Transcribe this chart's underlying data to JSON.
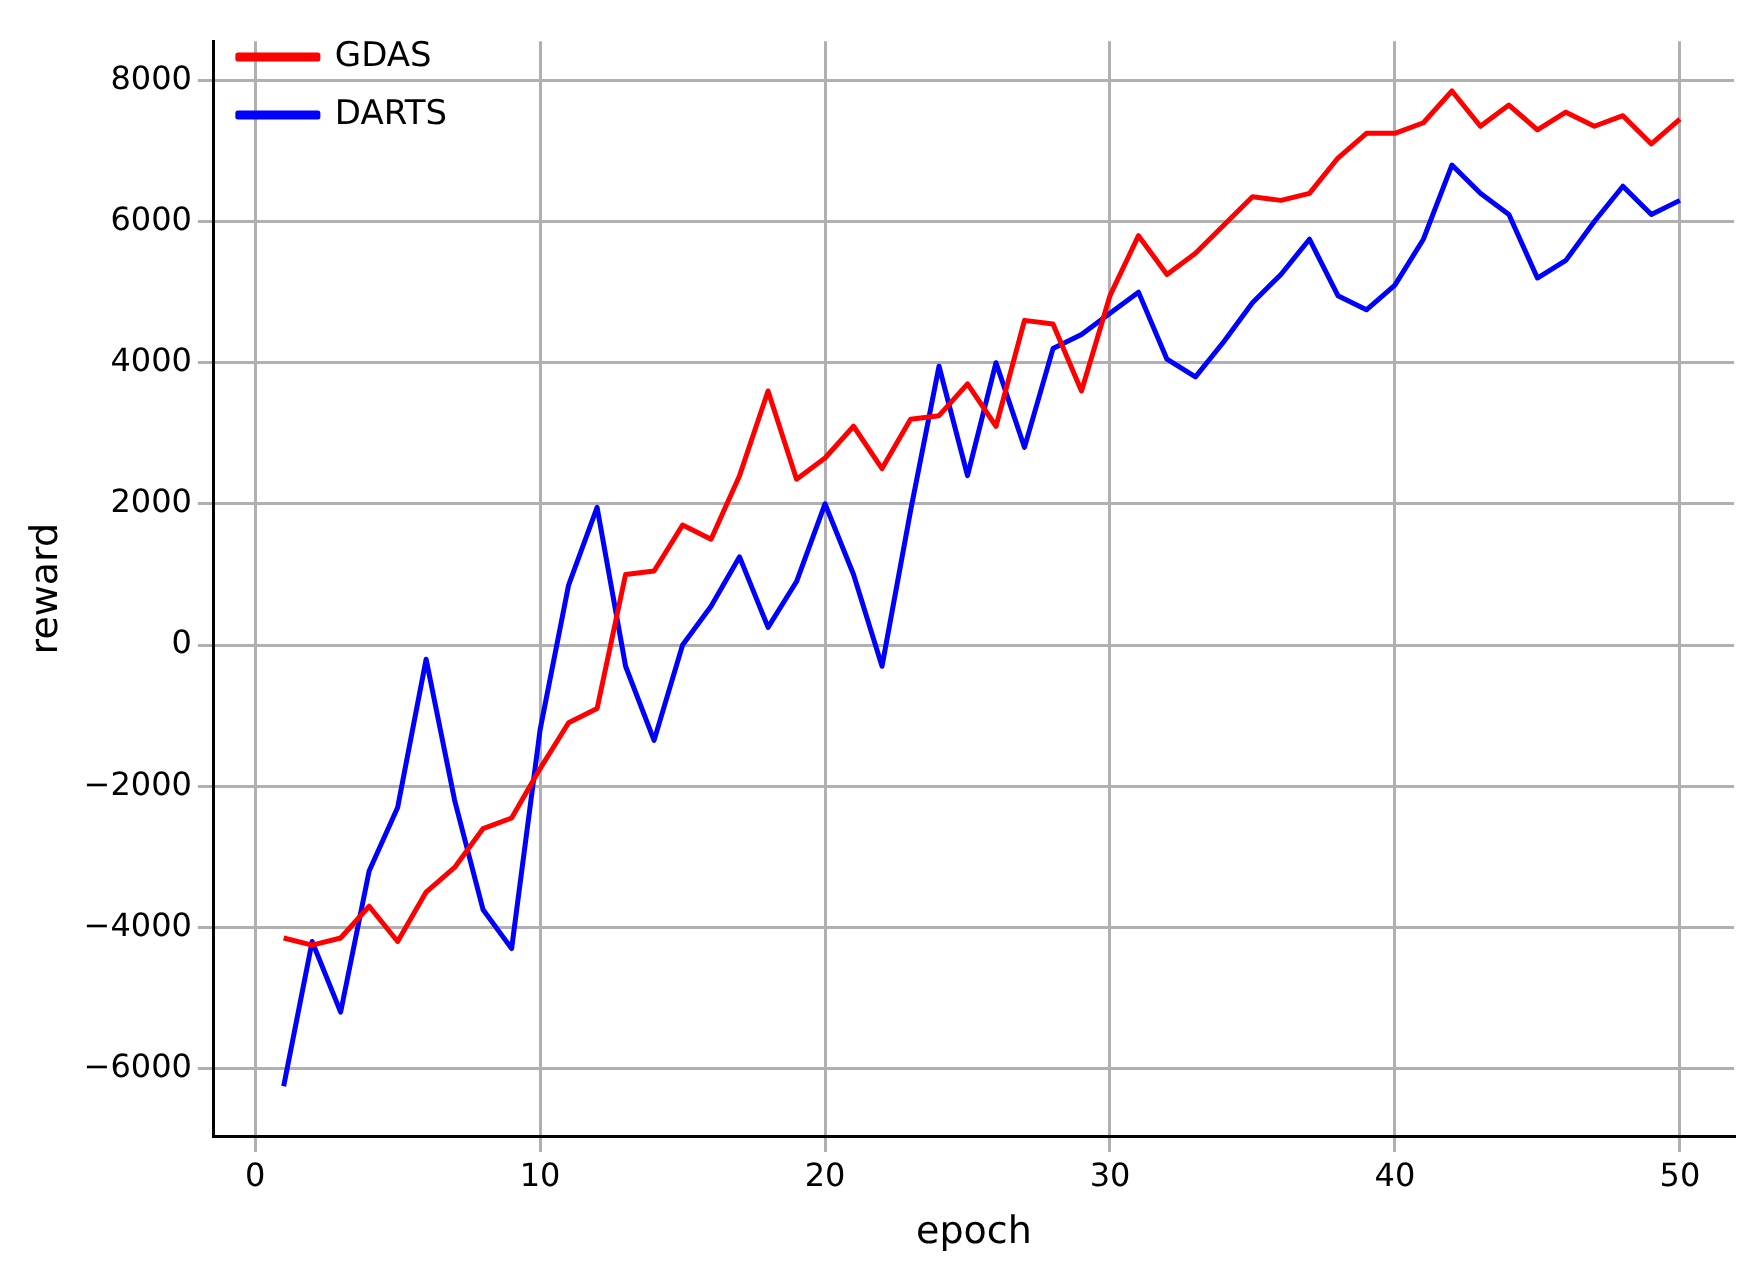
{
  "chart_data": {
    "type": "line",
    "xlabel": "epoch",
    "ylabel": "reward",
    "x": [
      1,
      2,
      3,
      4,
      5,
      6,
      7,
      8,
      9,
      10,
      11,
      12,
      13,
      14,
      15,
      16,
      17,
      18,
      19,
      20,
      21,
      22,
      23,
      24,
      25,
      26,
      27,
      28,
      29,
      30,
      31,
      32,
      33,
      34,
      35,
      36,
      37,
      38,
      39,
      40,
      41,
      42,
      43,
      44,
      45,
      46,
      47,
      48,
      49,
      50
    ],
    "series": [
      {
        "name": "GDAS",
        "color": "#ff0000",
        "values": [
          -4150,
          -4250,
          -4150,
          -3700,
          -4200,
          -3500,
          -3150,
          -2600,
          -2450,
          -1750,
          -1100,
          -900,
          1000,
          1050,
          1700,
          1500,
          2400,
          3600,
          2350,
          2650,
          3100,
          2500,
          3200,
          3250,
          3700,
          3100,
          4600,
          4550,
          3600,
          4950,
          5800,
          5250,
          5550,
          5950,
          6350,
          6300,
          6400,
          6900,
          7250,
          7250,
          7400,
          7850,
          7350,
          7650,
          7300,
          7550,
          7350,
          7500,
          7100,
          7450
        ]
      },
      {
        "name": "DARTS",
        "color": "#0000ff",
        "values": [
          -6250,
          -4200,
          -5200,
          -3200,
          -2300,
          -200,
          -2200,
          -3750,
          -4300,
          -1200,
          850,
          1950,
          -300,
          -1350,
          0,
          550,
          1250,
          250,
          900,
          2000,
          1000,
          -300,
          1900,
          3950,
          2400,
          4000,
          2800,
          4200,
          4400,
          4700,
          5000,
          4050,
          3800,
          4300,
          4850,
          5250,
          5750,
          4950,
          4750,
          5100,
          5750,
          6800,
          6400,
          6100,
          5200,
          5450,
          6000,
          6500,
          6100,
          6300
        ]
      }
    ],
    "xlim": [
      -1.45,
      51.9
    ],
    "xticks": [
      0,
      10,
      20,
      30,
      40,
      50
    ],
    "ylim": [
      -6955,
      8555
    ],
    "yticks": [
      -6000,
      -4000,
      -2000,
      0,
      2000,
      4000,
      6000,
      8000
    ],
    "grid": true,
    "legend": "top left",
    "marker": "none",
    "line_style": "solid"
  }
}
